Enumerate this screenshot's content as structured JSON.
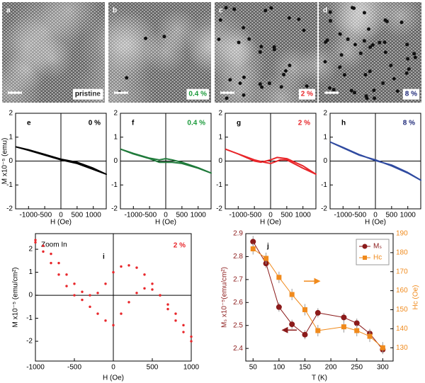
{
  "images": [
    {
      "label": "a",
      "caption": "pristine",
      "caption_color": "#000000"
    },
    {
      "label": "b",
      "caption": "0.4 %",
      "caption_color": "#1a9a3a"
    },
    {
      "label": "c",
      "caption": "2 %",
      "caption_color": "#e8262a"
    },
    {
      "label": "d",
      "caption": "8 %",
      "caption_color": "#1f2a7a"
    }
  ],
  "chart_data": [
    {
      "type": "line",
      "label": "e",
      "annotation": "0 %",
      "annotation_color": "#000000",
      "color": "#000000",
      "x": [
        -1400,
        -1000,
        -500,
        0,
        500,
        1000,
        1400,
        1000,
        500,
        0,
        -500,
        -1000,
        -1400
      ],
      "values": [
        0.6,
        0.45,
        0.25,
        0.05,
        -0.1,
        -0.35,
        -0.55,
        -0.3,
        -0.05,
        0.08,
        0.28,
        0.47,
        0.6
      ],
      "xlim": [
        -1400,
        1400
      ],
      "ylim": [
        -2,
        2
      ],
      "xticks": [
        -1000,
        -500,
        0,
        500,
        1000
      ],
      "yticks": [
        -2,
        -1,
        0,
        1,
        2
      ],
      "xlabel": "H (Oe)",
      "ylabel": "M x10⁻⁵ (emu)"
    },
    {
      "type": "line",
      "label": "f",
      "annotation": "0.4 %",
      "annotation_color": "#1a9a3a",
      "color": "#1f7a3a",
      "x": [
        -1400,
        -1000,
        -500,
        -200,
        0,
        200,
        500,
        1000,
        1400,
        1000,
        500,
        200,
        0,
        -200,
        -500,
        -1000,
        -1400
      ],
      "values": [
        0.5,
        0.3,
        0.1,
        -0.05,
        -0.05,
        -0.05,
        -0.1,
        -0.3,
        -0.5,
        -0.28,
        -0.05,
        0.05,
        0.1,
        0.05,
        0.12,
        0.32,
        0.5
      ],
      "xlim": [
        -1400,
        1400
      ],
      "ylim": [
        -2,
        2
      ],
      "xticks": [
        -1000,
        -500,
        0,
        500,
        1000
      ],
      "yticks": [
        -2,
        -1,
        0,
        1,
        2
      ],
      "xlabel": "H (Oe)"
    },
    {
      "type": "line",
      "label": "g",
      "annotation": "2 %",
      "annotation_color": "#e8262a",
      "color": "#e8262a",
      "x": [
        -1400,
        -1000,
        -500,
        -200,
        0,
        300,
        500,
        1000,
        1400,
        1000,
        500,
        200,
        0,
        -300,
        -500,
        -1000,
        -1400
      ],
      "values": [
        0.5,
        0.3,
        0.05,
        -0.05,
        -0.1,
        0.05,
        0.05,
        -0.3,
        -0.55,
        -0.2,
        0.1,
        0.15,
        0.05,
        -0.05,
        0.0,
        0.3,
        0.5
      ],
      "xlim": [
        -1400,
        1400
      ],
      "ylim": [
        -2,
        2
      ],
      "xticks": [
        -1000,
        -500,
        0,
        500,
        1000
      ],
      "yticks": [
        -2,
        -1,
        0,
        1,
        2
      ],
      "xlabel": "H (Oe)"
    },
    {
      "type": "line",
      "label": "h",
      "annotation": "8 %",
      "annotation_color": "#1f2a7a",
      "color": "#2f4aa0",
      "x": [
        -1400,
        -1000,
        -500,
        0,
        500,
        1000,
        1400,
        1000,
        500,
        0,
        -500,
        -1000,
        -1400
      ],
      "values": [
        0.8,
        0.55,
        0.25,
        0.05,
        -0.2,
        -0.5,
        -0.8,
        -0.48,
        -0.17,
        0.02,
        0.27,
        0.57,
        0.8
      ],
      "xlim": [
        -1400,
        1400
      ],
      "ylim": [
        -2,
        2
      ],
      "xticks": [
        -1000,
        -500,
        0,
        500,
        1000
      ],
      "yticks": [
        -2,
        -1,
        0,
        1,
        2
      ],
      "xlabel": "H (Oe)"
    },
    {
      "type": "scatter",
      "label": "i",
      "annotation": "2 %",
      "annotation_color": "#e8262a",
      "note": "Zoom In",
      "color": "#e8262a",
      "x": [
        -1000,
        -900,
        -800,
        -700,
        -600,
        -500,
        -400,
        -300,
        -200,
        -100,
        0,
        100,
        200,
        300,
        400,
        500,
        600,
        700,
        800,
        900,
        1000,
        1000,
        900,
        800,
        700,
        600,
        500,
        400,
        300,
        200,
        100,
        0,
        -100,
        -200,
        -300,
        -400,
        -500,
        -600,
        -700,
        -800,
        -900,
        -1000
      ],
      "values": [
        2.4,
        2.15,
        1.8,
        1.4,
        0.9,
        0.5,
        0.15,
        0.0,
        0.1,
        0.5,
        1.0,
        1.25,
        1.3,
        1.2,
        0.9,
        0.5,
        0.0,
        -0.6,
        -1.1,
        -1.6,
        -2.0,
        -1.8,
        -1.3,
        -0.8,
        -0.4,
        0.0,
        0.25,
        0.3,
        0.1,
        -0.3,
        -0.8,
        -1.3,
        -1.1,
        -0.8,
        -0.5,
        -0.2,
        0.0,
        0.4,
        0.9,
        1.4,
        1.9,
        2.3
      ],
      "xlim": [
        -1000,
        1000
      ],
      "ylim": [
        -2.86,
        2.68
      ],
      "xticks": [
        -1000,
        -500,
        0,
        500,
        1000
      ],
      "yticks": [
        -2,
        -1,
        0,
        1,
        2
      ],
      "xlabel": "H (Oe)",
      "ylabel": "M x10⁻⁵ (emu/cm²)"
    },
    {
      "type": "line",
      "label": "j",
      "legend": "upper right",
      "x": [
        50,
        75,
        100,
        125,
        150,
        175,
        225,
        250,
        275,
        300
      ],
      "series": [
        {
          "name": "Mₛ",
          "color": "#8b1a1a",
          "marker": "circle",
          "values": [
            2.865,
            2.77,
            2.58,
            2.505,
            2.46,
            2.555,
            2.535,
            2.51,
            2.465,
            2.395
          ],
          "errors": [
            0.025,
            0.02,
            0.02,
            0.02,
            0.02,
            0.02,
            0.02,
            0.02,
            0.02,
            0.02
          ]
        },
        {
          "name": "Hc",
          "color": "#f08a1c",
          "marker": "square",
          "axis": "y2",
          "values": [
            182,
            177,
            167,
            158,
            150,
            139,
            141,
            139,
            136,
            130
          ],
          "errors": [
            3,
            3,
            3,
            3,
            3,
            3,
            3,
            3,
            3,
            3
          ]
        }
      ],
      "xlim": [
        36,
        320
      ],
      "ylim": [
        2.345,
        2.9
      ],
      "y2lim": [
        123,
        190
      ],
      "xticks": [
        50,
        100,
        150,
        200,
        250,
        300
      ],
      "yticks": [
        2.4,
        2.5,
        2.6,
        2.7,
        2.8,
        2.9
      ],
      "y2ticks": [
        130,
        140,
        150,
        160,
        170,
        180,
        190
      ],
      "xlabel": "T (K)",
      "ylabel": "Mₛ x10⁻⁵(emu/cm²)",
      "y2label": "Hc (Oe)"
    }
  ]
}
